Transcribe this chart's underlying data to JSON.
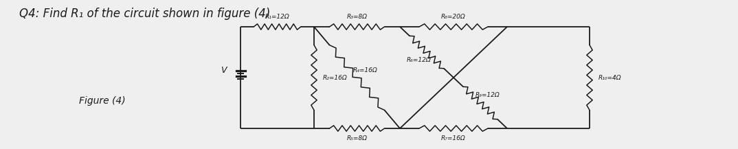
{
  "title": "Q4: Find R₁ of the circuit shown in figure (4)",
  "figure_label": "Figure (4)",
  "background_color": "#efefef",
  "text_color": "#1a1a1a",
  "resistors": {
    "R1": "R₁=12Ω",
    "R2": "R₂=16Ω",
    "R3": "R₃=8Ω",
    "R4": "R₄=16Ω",
    "R5": "R₅=8Ω",
    "R6": "R₆=12Ω",
    "R7": "R₇=16Ω",
    "R8": "R₈=20Ω",
    "R9": "R₉=12Ω",
    "R10": "R₁₀=4Ω"
  },
  "voltage_label": "V",
  "font_size_title": 12,
  "font_size_labels": 6.5,
  "font_size_figure": 10,
  "circuit_bg": "#ffffff",
  "wire_color": "#1a1a1a",
  "lw_wire": 1.3,
  "lw_res": 1.1,
  "zigzag_amp": 0.042,
  "zigzag_n": 6
}
